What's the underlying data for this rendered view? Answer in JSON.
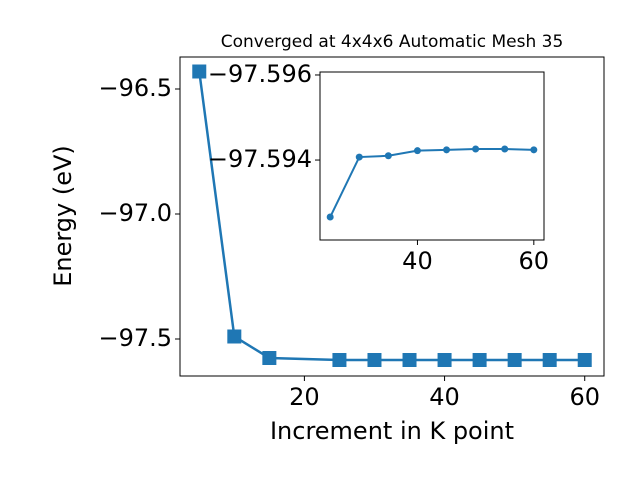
{
  "chart_data": [
    {
      "type": "line",
      "title": "Converged at 4x4x6 Automatic Mesh 35",
      "xlabel": "Increment in K point",
      "ylabel": "Energy (eV)",
      "x": [
        5,
        10,
        15,
        25,
        30,
        35,
        40,
        45,
        50,
        55,
        60
      ],
      "series": [
        {
          "color": "#1f77b4",
          "marker": "square",
          "values": [
            -96.43,
            -97.49,
            -97.576,
            -97.584,
            -97.584,
            -97.584,
            -97.584,
            -97.584,
            -97.584,
            -97.584,
            -97.584
          ]
        }
      ],
      "xlim": [
        2.25,
        62.75
      ],
      "ylim": [
        -97.648,
        -96.372
      ],
      "xticks": [
        20,
        40,
        60
      ],
      "yticks": [
        {
          "value": -96.5,
          "label": "−96.5"
        },
        {
          "value": -97.0,
          "label": "−97.0"
        },
        {
          "value": -97.5,
          "label": "−97.5"
        }
      ]
    },
    {
      "type": "line",
      "x": [
        25,
        30,
        35,
        40,
        45,
        50,
        55,
        60
      ],
      "series": [
        {
          "color": "#1f77b4",
          "marker": "circle",
          "values": [
            -97.59266,
            -97.59407,
            -97.5941,
            -97.59422,
            -97.59424,
            -97.59426,
            -97.59426,
            -97.59424
          ]
        }
      ],
      "xlim": [
        23.25,
        61.75
      ],
      "ylim": [
        -97.59212,
        -97.59607
      ],
      "xticks": [
        40,
        60
      ],
      "yticks": [
        {
          "value": -97.596,
          "label": "−97.596"
        },
        {
          "value": -97.594,
          "label": "−97.594"
        }
      ]
    }
  ]
}
